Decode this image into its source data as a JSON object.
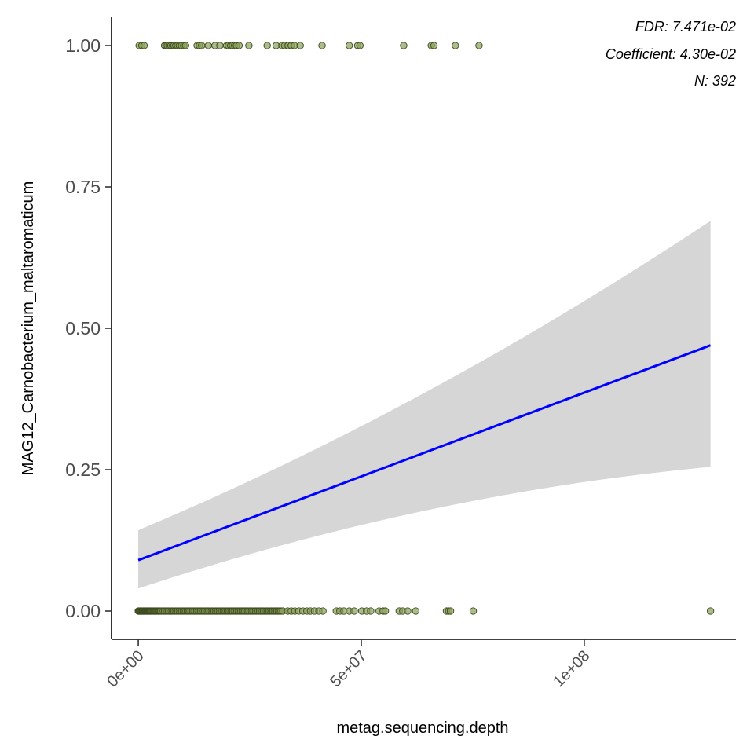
{
  "chart_data": {
    "type": "scatter",
    "xlabel": "metag.sequencing.depth",
    "ylabel": "MAG12_Carnobacterium_maltaromaticum",
    "xlim": [
      -6000000,
      134000000
    ],
    "ylim": [
      -0.05,
      1.05
    ],
    "x_ticks": [
      {
        "value": 0,
        "label": "0e+00"
      },
      {
        "value": 50000000,
        "label": "5e+07"
      },
      {
        "value": 100000000,
        "label": "1e+08"
      }
    ],
    "y_ticks": [
      {
        "value": 0.0,
        "label": "0.00"
      },
      {
        "value": 0.25,
        "label": "0.25"
      },
      {
        "value": 0.5,
        "label": "0.50"
      },
      {
        "value": 0.75,
        "label": "0.75"
      },
      {
        "value": 1.0,
        "label": "1.00"
      }
    ],
    "annotations": {
      "fdr": "FDR: 7.471e-02",
      "coefficient": "Coefficient: 4.30e-02",
      "n": "N: 392"
    },
    "points_y1_x": [
      200000,
      800000,
      1300000,
      5900000,
      6200000,
      6500000,
      6900000,
      7300000,
      7700000,
      8000000,
      8400000,
      8800000,
      9200000,
      9700000,
      10200000,
      10600000,
      13200000,
      13700000,
      14200000,
      15700000,
      17200000,
      18300000,
      19800000,
      20200000,
      20700000,
      21100000,
      21600000,
      22000000,
      22600000,
      24800000,
      28900000,
      30900000,
      32200000,
      32800000,
      33600000,
      34300000,
      35000000,
      36300000,
      41200000,
      47300000,
      49200000,
      49700000,
      59500000,
      65700000,
      66300000,
      71100000,
      76400000
    ],
    "points_y0_x": [
      0,
      150000,
      300000,
      450000,
      600000,
      750000,
      900000,
      1050000,
      1200000,
      1350000,
      1500000,
      1650000,
      1800000,
      1950000,
      2100000,
      2250000,
      2400000,
      2550000,
      2700000,
      2850000,
      3000000,
      3200000,
      3400000,
      3600000,
      3800000,
      4000000,
      4200000,
      4400000,
      4600000,
      4800000,
      5000000,
      5300000,
      5600000,
      5900000,
      6200000,
      6500000,
      6800000,
      7100000,
      7400000,
      7700000,
      8000000,
      8300000,
      8600000,
      8900000,
      9200000,
      9500000,
      9800000,
      10100000,
      10400000,
      10700000,
      11000000,
      11300000,
      11600000,
      11900000,
      12200000,
      12500000,
      12800000,
      13100000,
      13400000,
      13700000,
      14000000,
      14300000,
      14600000,
      14900000,
      15200000,
      15500000,
      15800000,
      16100000,
      16400000,
      16700000,
      17000000,
      17300000,
      17600000,
      17900000,
      18200000,
      18500000,
      18800000,
      19100000,
      19400000,
      19700000,
      20000000,
      20300000,
      20600000,
      20900000,
      21200000,
      21500000,
      21800000,
      22100000,
      22400000,
      22700000,
      23000000,
      23300000,
      23600000,
      23900000,
      24200000,
      24500000,
      24800000,
      25100000,
      25400000,
      25700000,
      26000000,
      26300000,
      26600000,
      26900000,
      27200000,
      27500000,
      27800000,
      28100000,
      28400000,
      28700000,
      29000000,
      29300000,
      29600000,
      29900000,
      30200000,
      30500000,
      30800000,
      31100000,
      31400000,
      31700000,
      32000000,
      32400000,
      33500000,
      34300000,
      35100000,
      36000000,
      36900000,
      37800000,
      38600000,
      39500000,
      40500000,
      41400000,
      44400000,
      45200000,
      46100000,
      47300000,
      48400000,
      50100000,
      51200000,
      52100000,
      54000000,
      54900000,
      55400000,
      58500000,
      59300000,
      60400000,
      62200000,
      69100000,
      69600000,
      70000000,
      75100000,
      128300000
    ],
    "fit": {
      "x": [
        0,
        128300000
      ],
      "y": [
        0.09,
        0.47
      ],
      "ci_lower": [
        0.04,
        0.255
      ],
      "ci_upper": [
        0.143,
        0.69
      ]
    },
    "colors": {
      "points_fill": "#8aa05a",
      "points_stroke": "#3c4a1f",
      "fit_line": "#0000ff",
      "ci_band": "#d6d6d6",
      "axis": "#000000",
      "tick": "#333333"
    },
    "grid": false
  }
}
